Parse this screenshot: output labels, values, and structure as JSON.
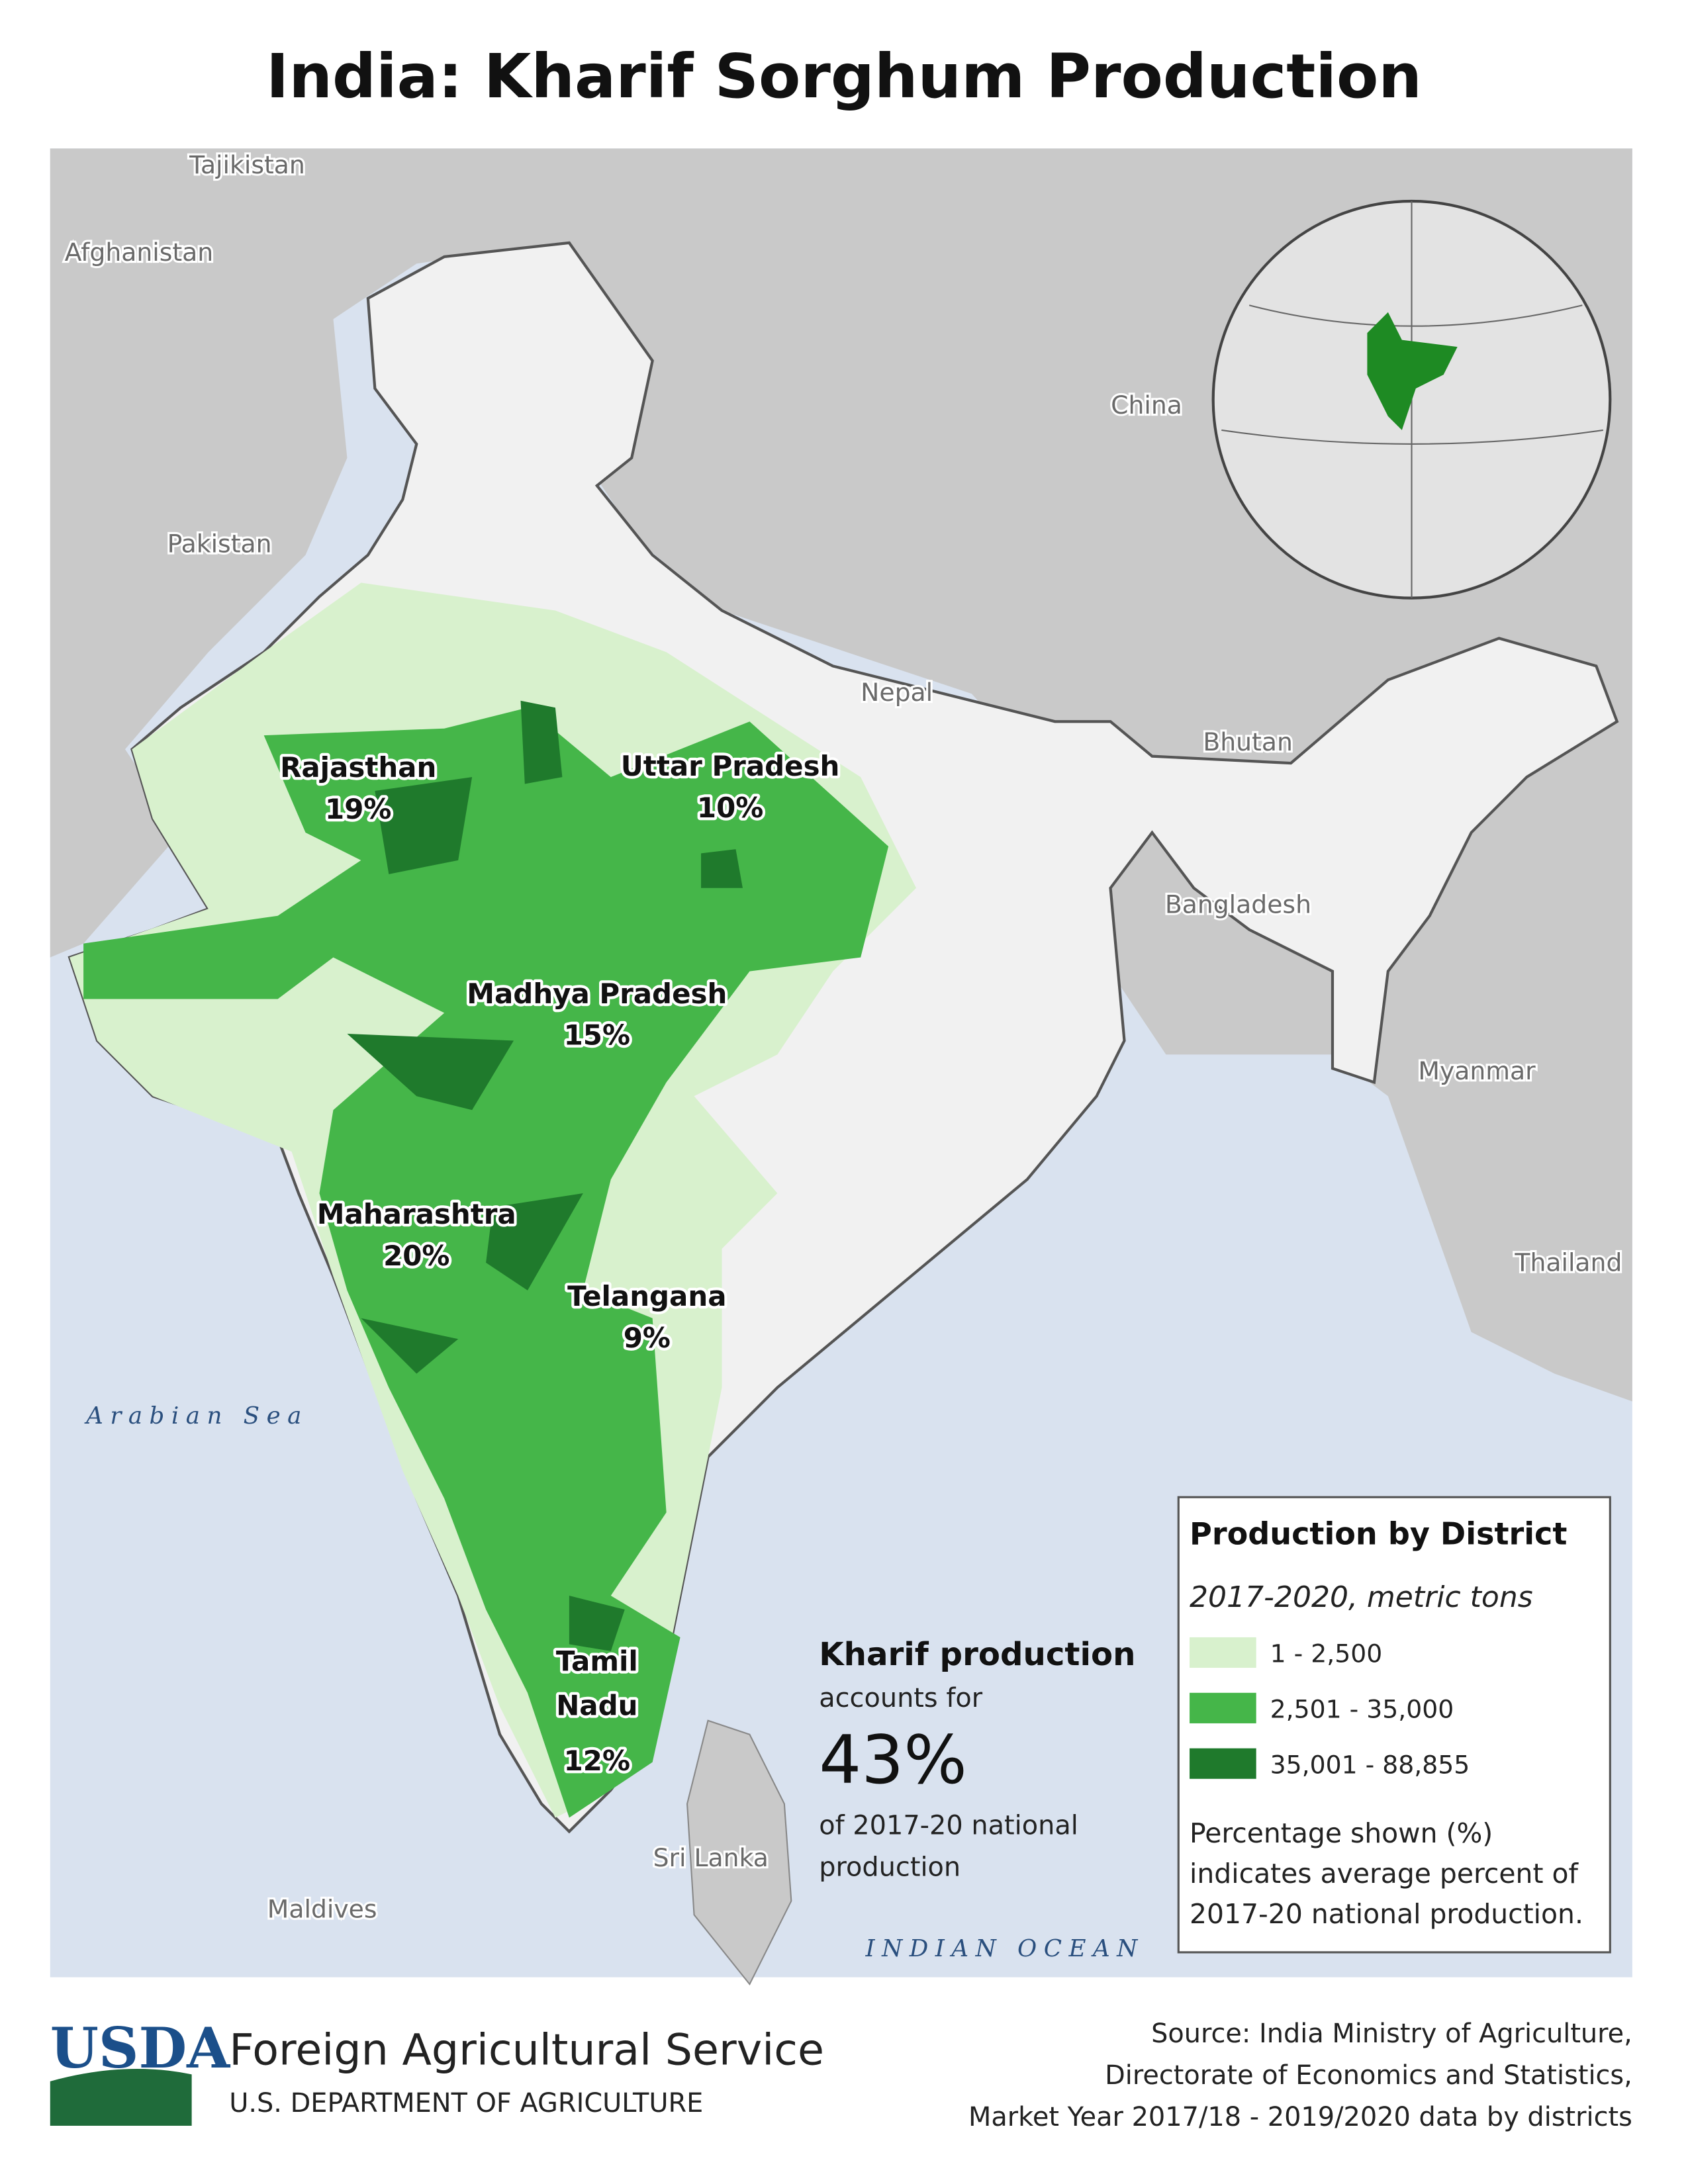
{
  "title": "India: Kharif Sorghum Production",
  "map": {
    "countries": [
      "Tajikistan",
      "Afghanistan",
      "Pakistan",
      "China",
      "Nepal",
      "Bhutan",
      "Bangladesh",
      "Myanmar",
      "Thailand",
      "Sri Lanka",
      "Maldives"
    ],
    "water": [
      "Arabian Sea",
      "INDIAN OCEAN"
    ],
    "states": [
      {
        "name": "Rajasthan",
        "share": "19%"
      },
      {
        "name": "Uttar Pradesh",
        "share": "10%"
      },
      {
        "name": "Madhya Pradesh",
        "share": "15%"
      },
      {
        "name": "Maharashtra",
        "share": "20%"
      },
      {
        "name": "Telangana",
        "share": "9%"
      },
      {
        "name": "Tamil Nadu",
        "share": "12%"
      }
    ]
  },
  "legend": {
    "title": "Production by District",
    "subtitle": "2017-2020, metric tons",
    "classes": [
      {
        "label": "1 - 2,500",
        "color": "#d8f1cd"
      },
      {
        "label": "2,501 - 35,000",
        "color": "#45b649"
      },
      {
        "label": "35,001 - 88,855",
        "color": "#1f7a2c"
      }
    ],
    "note": [
      "Percentage shown (%)",
      "indicates average percent of",
      "2017-20 national production."
    ]
  },
  "callout": {
    "heading": "Kharif production",
    "line1": "accounts for",
    "value": "43%",
    "line2": [
      "of 2017-20 national",
      "production"
    ]
  },
  "footer": {
    "logo": "USDA",
    "agency": "Foreign Agricultural Service",
    "department": "U.S. DEPARTMENT OF AGRICULTURE",
    "source": [
      "Source: India Ministry of Agriculture,",
      "Directorate of Economics and Statistics,",
      "Market Year 2017/18 - 2019/2020 data by districts"
    ]
  }
}
